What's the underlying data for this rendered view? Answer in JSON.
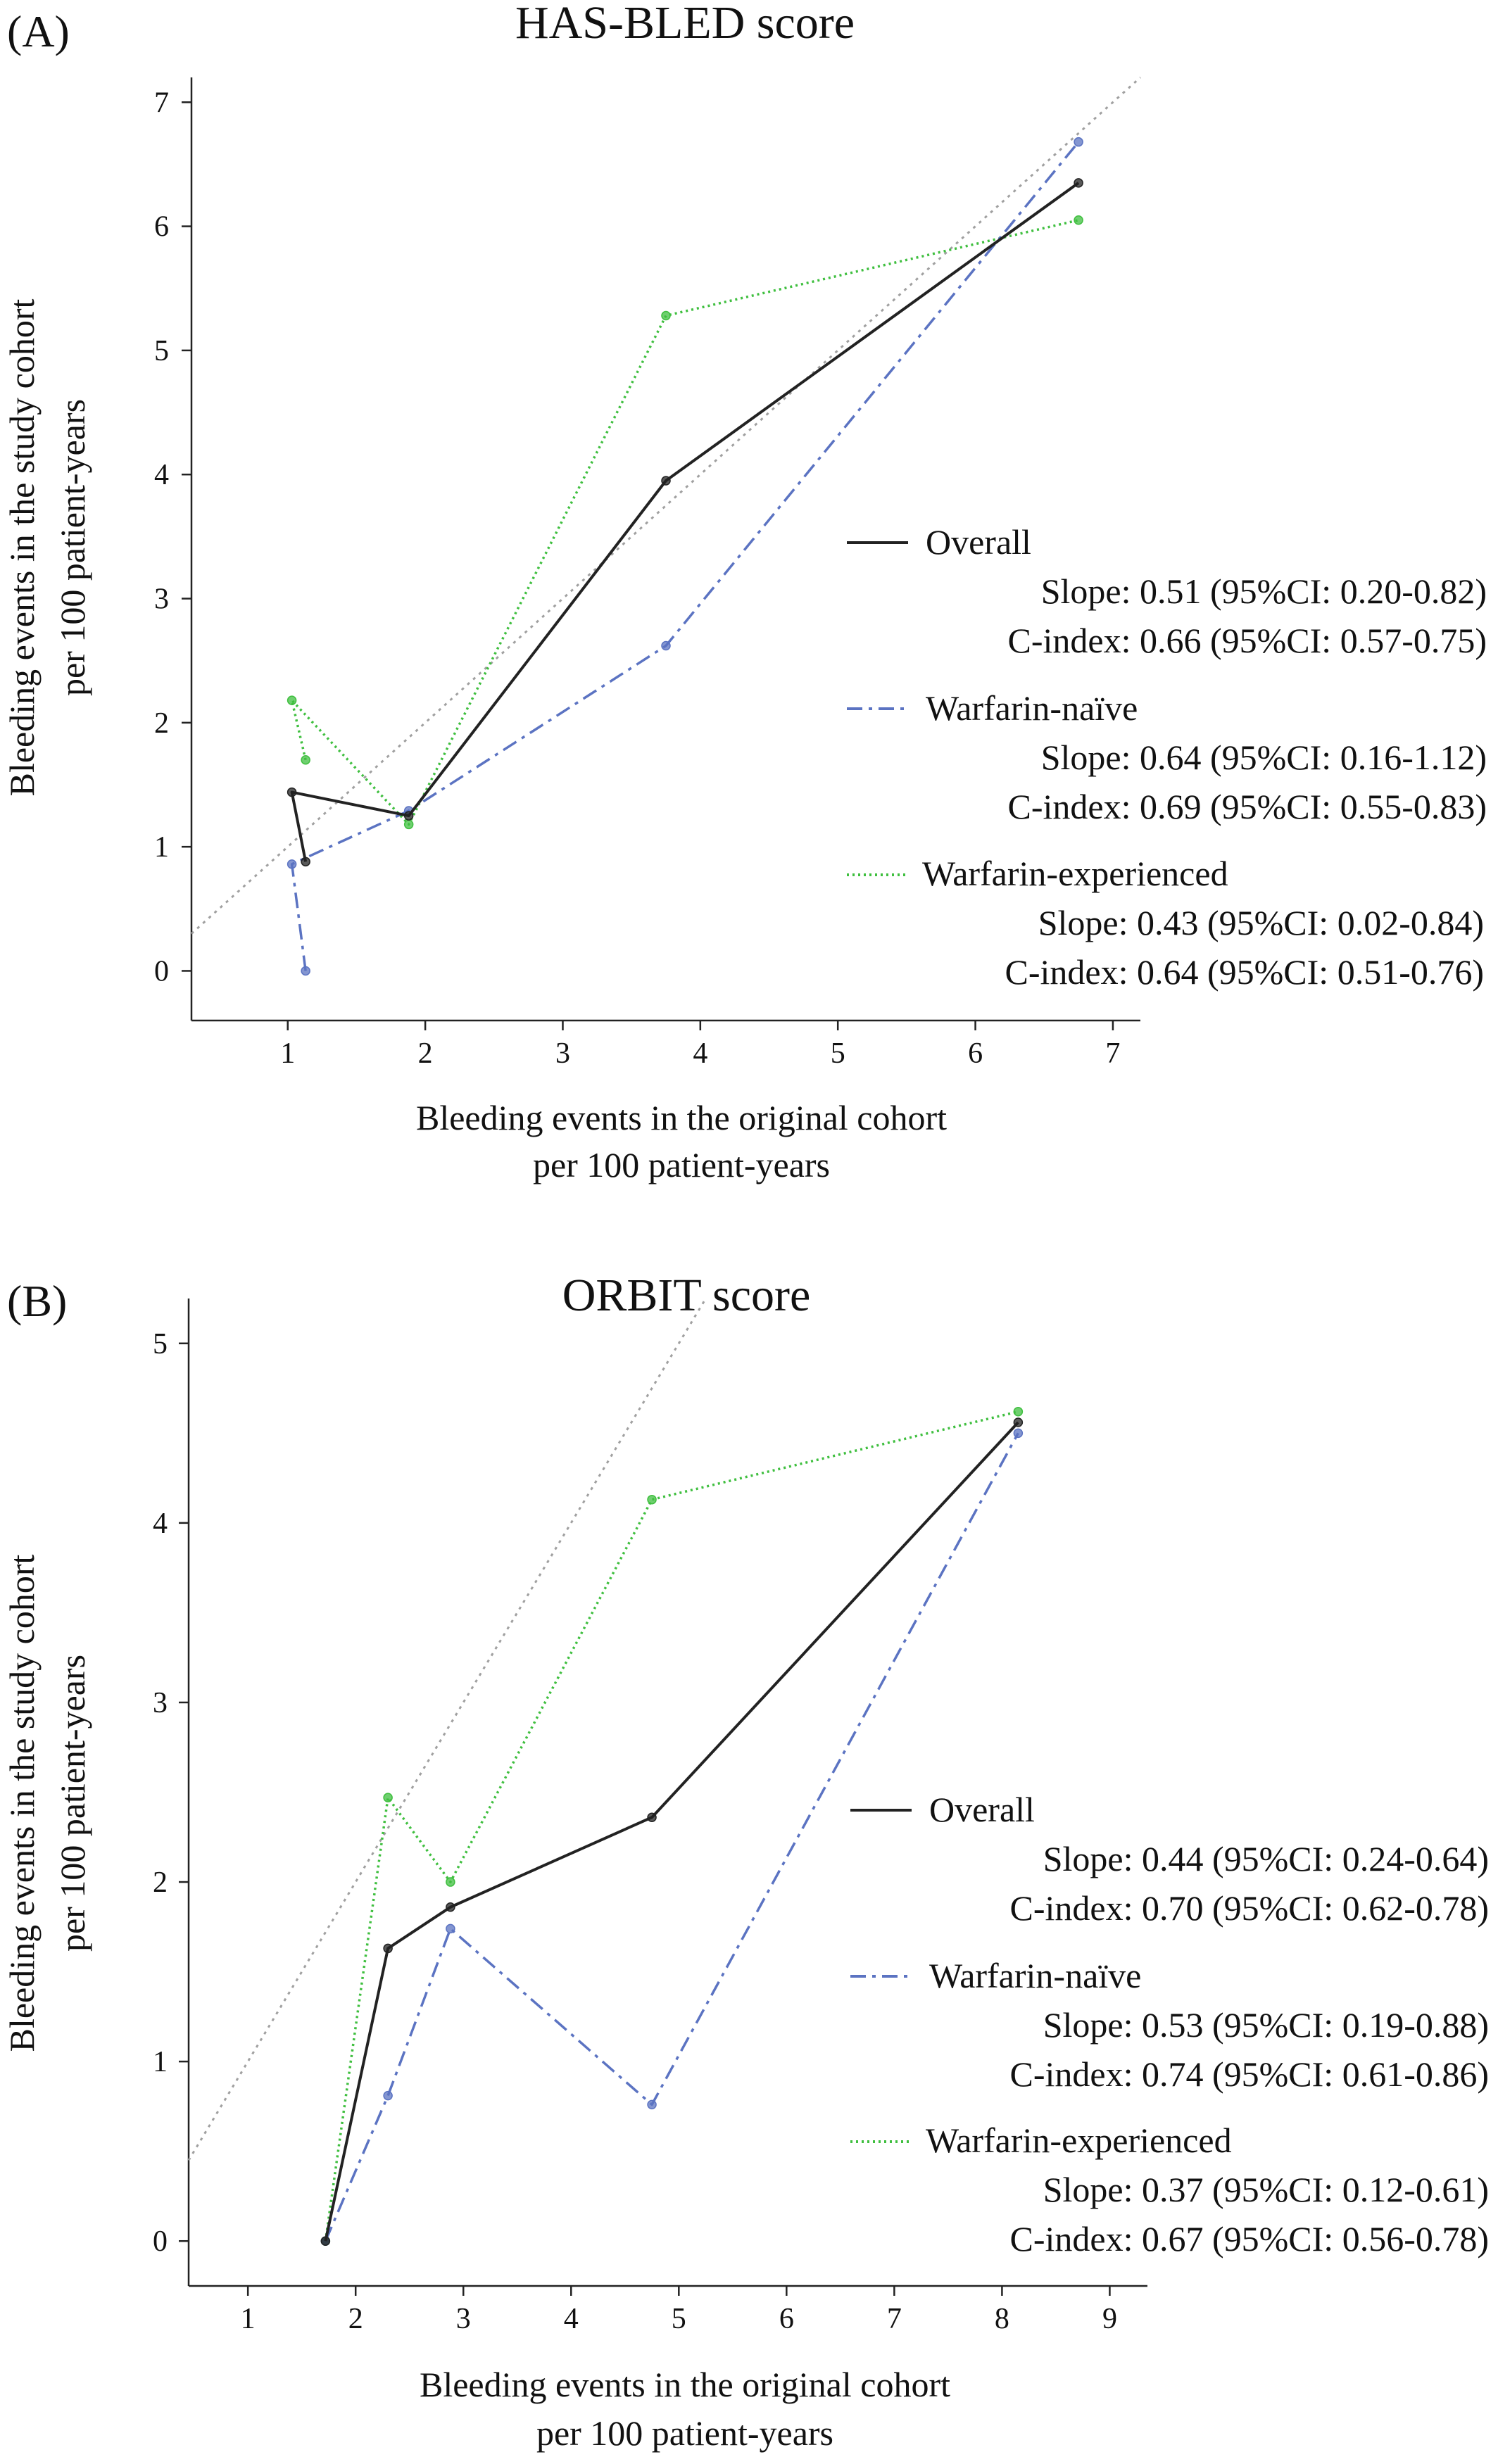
{
  "colors": {
    "overall": "#222222",
    "naive": "#5b73c2",
    "experienced": "#3fbf3f",
    "reference": "#a0a0a0"
  },
  "chart_data": [
    {
      "panel": "(A)",
      "type": "line",
      "title": "HAS-BLED score",
      "xlabel": [
        "Bleeding events in the original cohort",
        "per 100 patient-years"
      ],
      "ylabel": [
        "Bleeding events in the study cohort",
        "per 100 patient-years"
      ],
      "xlim": [
        0.3,
        7.2
      ],
      "ylim": [
        -0.4,
        7.2
      ],
      "xticks": [
        "1",
        "2",
        "3",
        "4",
        "5",
        "6",
        "7"
      ],
      "yticks": [
        "0",
        "1",
        "2",
        "3",
        "4",
        "5",
        "6",
        "7"
      ],
      "series": [
        {
          "name": "Overall",
          "color": "overall",
          "dash": "solid",
          "x": [
            1.13,
            1.03,
            1.88,
            3.75,
            6.75
          ],
          "y": [
            0.88,
            1.44,
            1.25,
            3.95,
            6.35
          ],
          "slope": "Slope: 0.51 (95%CI: 0.20-0.82)",
          "cindex": "C-index: 0.66 (95%CI: 0.57-0.75)"
        },
        {
          "name": "Warfarin-naïve",
          "color": "naive",
          "dash": "dashdot",
          "x": [
            1.13,
            1.03,
            1.88,
            3.75,
            6.75
          ],
          "y": [
            0.0,
            0.86,
            1.29,
            2.62,
            6.68
          ],
          "slope": "Slope: 0.64 (95%CI: 0.16-1.12)",
          "cindex": "C-index: 0.69 (95%CI: 0.55-0.83)"
        },
        {
          "name": "Warfarin-experienced",
          "color": "experienced",
          "dash": "dotted",
          "x": [
            1.13,
            1.03,
            1.88,
            3.75,
            6.75
          ],
          "y": [
            1.7,
            2.18,
            1.18,
            5.28,
            6.05
          ],
          "slope": "Slope: 0.43 (95%CI: 0.02-0.84)",
          "cindex": "C-index: 0.64 (95%CI: 0.51-0.76)"
        }
      ]
    },
    {
      "panel": "(B)",
      "type": "line",
      "title": "ORBIT score",
      "xlabel": [
        "Bleeding events in the original cohort",
        "per 100 patient-years"
      ],
      "ylabel": [
        "Bleeding events in the study cohort",
        "per 100 patient-years"
      ],
      "xlim": [
        0.45,
        9.35
      ],
      "ylim": [
        -0.25,
        5.25
      ],
      "xticks": [
        "1",
        "2",
        "3",
        "4",
        "5",
        "6",
        "7",
        "8",
        "9"
      ],
      "yticks": [
        "0",
        "1",
        "2",
        "3",
        "4",
        "5"
      ],
      "series": [
        {
          "name": "Overall",
          "color": "overall",
          "dash": "solid",
          "x": [
            1.72,
            2.3,
            2.88,
            4.75,
            8.15
          ],
          "y": [
            0.0,
            1.63,
            1.86,
            2.36,
            4.56
          ],
          "slope": "Slope: 0.44 (95%CI: 0.24-0.64)",
          "cindex": "C-index: 0.70 (95%CI: 0.62-0.78)"
        },
        {
          "name": "Warfarin-naïve",
          "color": "naive",
          "dash": "dashdot",
          "x": [
            1.72,
            2.3,
            2.88,
            4.75,
            8.15
          ],
          "y": [
            0.0,
            0.81,
            1.74,
            0.76,
            4.5
          ],
          "slope": "Slope: 0.53 (95%CI: 0.19-0.88)",
          "cindex": "C-index: 0.74 (95%CI: 0.61-0.86)"
        },
        {
          "name": "Warfarin-experienced",
          "color": "experienced",
          "dash": "dotted",
          "x": [
            1.72,
            2.3,
            2.88,
            4.75,
            8.15
          ],
          "y": [
            0.0,
            2.47,
            2.0,
            4.13,
            4.62
          ],
          "slope": "Slope: 0.37 (95%CI: 0.12-0.61)",
          "cindex": "C-index: 0.67 (95%CI: 0.56-0.78)"
        }
      ]
    }
  ]
}
